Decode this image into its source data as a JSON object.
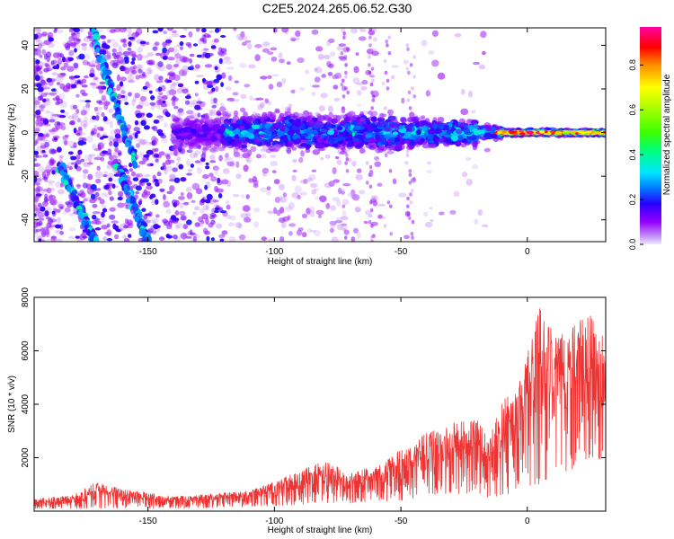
{
  "title": "C2E5.2024.265.06.52.G30",
  "colorbar": {
    "label": "Normalized spectral amplitude",
    "ticks": [
      "0.0",
      "0.2",
      "0.4",
      "0.6",
      "0.8"
    ],
    "tick_values": [
      0.0,
      0.2,
      0.4,
      0.6,
      0.8
    ],
    "range": [
      0,
      0.97
    ]
  },
  "chart_data": [
    {
      "type": "heatmap",
      "xlabel": "Height of straight line (km)",
      "ylabel": "Frequency (Hz)",
      "xlim": [
        -195,
        31
      ],
      "ylim": [
        -50,
        48
      ],
      "xticks": [
        -150,
        -100,
        -50,
        0
      ],
      "yticks": [
        -40,
        -20,
        0,
        20,
        40
      ],
      "xtick_labels": [
        "-150",
        "-100",
        "-50",
        "0"
      ],
      "ytick_labels": [
        "-40",
        "-20",
        "0",
        "20",
        "40"
      ],
      "features": [
        {
          "name": "main-band",
          "x_range": [
            -140,
            31
          ],
          "y_center": 0,
          "peak_amplitude": 0.97
        },
        {
          "name": "diagonal-streak-1",
          "from": [
            -172,
            48
          ],
          "to": [
            -155,
            -15
          ]
        },
        {
          "name": "diagonal-streak-2",
          "from": [
            -185,
            -15
          ],
          "to": [
            -171,
            -50
          ]
        },
        {
          "name": "diagonal-streak-3",
          "from": [
            -162,
            -15
          ],
          "to": [
            -150,
            -50
          ]
        }
      ]
    },
    {
      "type": "line",
      "xlabel": "Height of straight line (km)",
      "ylabel": "SNR (10 * v/v)",
      "xlim": [
        -195,
        31
      ],
      "ylim": [
        0,
        8000
      ],
      "xticks": [
        -150,
        -100,
        -50,
        0
      ],
      "yticks": [
        2000,
        4000,
        6000,
        8000
      ],
      "xtick_labels": [
        "-150",
        "-100",
        "-50",
        "0"
      ],
      "ytick_labels": [
        "2000",
        "4000",
        "6000",
        "8000"
      ],
      "line_color": "#ee3333",
      "x": [
        -195,
        -180,
        -170,
        -160,
        -150,
        -140,
        -130,
        -120,
        -110,
        -100,
        -90,
        -80,
        -70,
        -60,
        -50,
        -40,
        -30,
        -20,
        -15,
        -10,
        -5,
        0,
        5,
        10,
        15,
        20,
        25,
        31
      ],
      "envelope_low": [
        100,
        100,
        100,
        100,
        100,
        100,
        120,
        150,
        150,
        200,
        250,
        300,
        300,
        350,
        400,
        500,
        600,
        700,
        500,
        600,
        700,
        900,
        1000,
        1200,
        1400,
        1600,
        1800,
        2000
      ],
      "envelope_high": [
        450,
        600,
        1100,
        800,
        700,
        550,
        600,
        700,
        750,
        1100,
        1500,
        1900,
        1400,
        1700,
        2300,
        2900,
        3300,
        3400,
        3000,
        4000,
        4800,
        5900,
        7600,
        7000,
        6500,
        7100,
        7300,
        6800
      ]
    }
  ]
}
